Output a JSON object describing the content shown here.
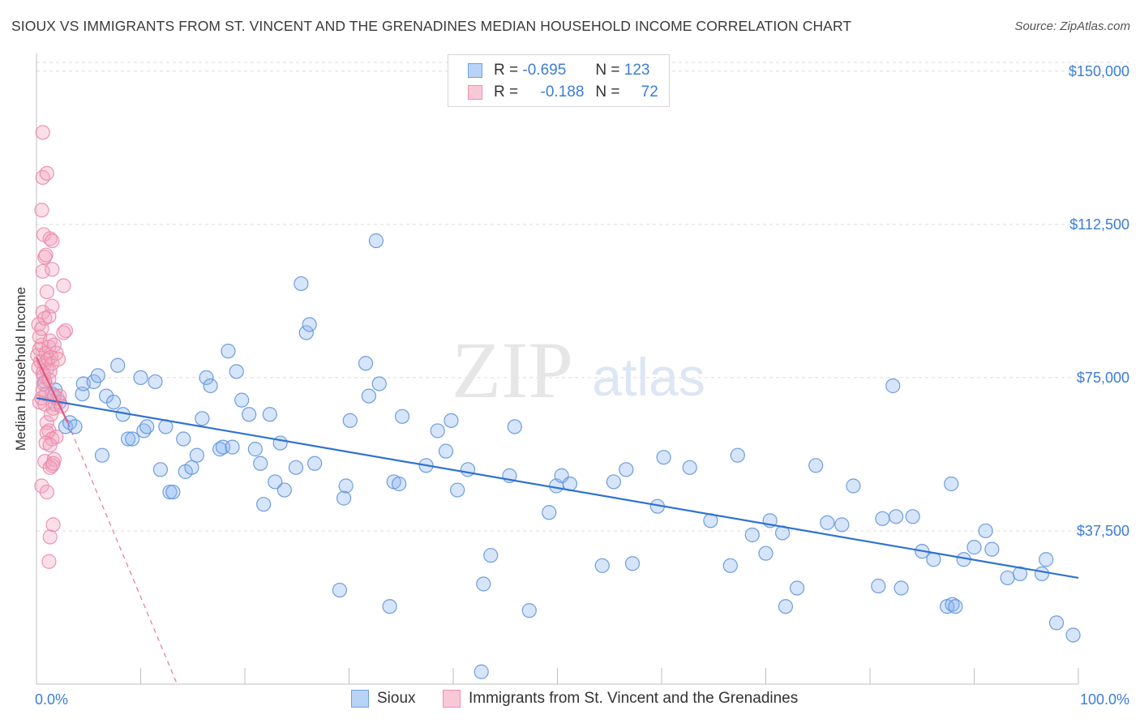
{
  "header": {
    "title": "SIOUX VS IMMIGRANTS FROM ST. VINCENT AND THE GRENADINES MEDIAN HOUSEHOLD INCOME CORRELATION CHART",
    "source": "Source: ZipAtlas.com"
  },
  "watermark": {
    "zip": "ZIP",
    "atlas": "atlas"
  },
  "legend": {
    "rows": [
      {
        "r_label": "R =",
        "r_value": "-0.695",
        "n_label": "N =",
        "n_value": "123",
        "color": "#8ab4f0"
      },
      {
        "r_label": "R =",
        "r_value": "-0.188",
        "n_label": "N =",
        "n_value": "72",
        "color": "#f3a3bd"
      }
    ]
  },
  "bottom_legend": {
    "series1": "Sioux",
    "series2": "Immigrants from St. Vincent and the Grenadines"
  },
  "chart_data": {
    "type": "scatter",
    "title": "SIOUX VS IMMIGRANTS FROM ST. VINCENT AND THE GRENADINES MEDIAN HOUSEHOLD INCOME CORRELATION CHART",
    "xlabel": "",
    "ylabel": "Median Household Income",
    "xlim": [
      0,
      100
    ],
    "ylim": [
      0,
      157500
    ],
    "x_tick_labels": [
      "0.0%",
      "100.0%"
    ],
    "y_ticks": [
      37500,
      75000,
      112500,
      150000
    ],
    "y_tick_labels": [
      "$37,500",
      "$75,000",
      "$112,500",
      "$150,000"
    ],
    "grid": "horizontal dashed",
    "legend_position": "top-center",
    "series": [
      {
        "name": "Sioux",
        "color": "#8ab4f0",
        "line_color": "#2f72d0",
        "r": -0.695,
        "n": 123,
        "trend": {
          "x": [
            0,
            100
          ],
          "y": [
            70000,
            26000
          ],
          "style": "solid"
        },
        "points": [
          [
            0.8,
            74000
          ],
          [
            1.5,
            71000
          ],
          [
            1.8,
            72000
          ],
          [
            2.2,
            69000
          ],
          [
            2.8,
            63000
          ],
          [
            3.2,
            64000
          ],
          [
            3.7,
            63000
          ],
          [
            4.4,
            71000
          ],
          [
            4.5,
            73500
          ],
          [
            5.5,
            74000
          ],
          [
            5.9,
            75500
          ],
          [
            6.3,
            56000
          ],
          [
            6.7,
            70500
          ],
          [
            7.4,
            69000
          ],
          [
            7.8,
            78000
          ],
          [
            8.3,
            66000
          ],
          [
            8.8,
            60000
          ],
          [
            9.2,
            60000
          ],
          [
            10.0,
            75000
          ],
          [
            10.3,
            62000
          ],
          [
            10.6,
            63000
          ],
          [
            11.4,
            74000
          ],
          [
            11.9,
            52500
          ],
          [
            12.4,
            63000
          ],
          [
            12.8,
            47000
          ],
          [
            13.1,
            47000
          ],
          [
            14.1,
            60000
          ],
          [
            14.3,
            52000
          ],
          [
            14.9,
            53000
          ],
          [
            15.4,
            56000
          ],
          [
            15.9,
            65000
          ],
          [
            16.3,
            75000
          ],
          [
            16.7,
            73000
          ],
          [
            17.6,
            57500
          ],
          [
            17.9,
            58000
          ],
          [
            18.4,
            81500
          ],
          [
            18.8,
            58000
          ],
          [
            19.2,
            76500
          ],
          [
            19.7,
            69500
          ],
          [
            20.4,
            66000
          ],
          [
            21.0,
            57500
          ],
          [
            21.5,
            54000
          ],
          [
            21.8,
            44000
          ],
          [
            22.4,
            66000
          ],
          [
            22.9,
            49500
          ],
          [
            23.4,
            59000
          ],
          [
            23.8,
            47500
          ],
          [
            24.9,
            53000
          ],
          [
            25.4,
            98000
          ],
          [
            25.9,
            86000
          ],
          [
            26.2,
            88000
          ],
          [
            26.7,
            54000
          ],
          [
            29.1,
            23000
          ],
          [
            29.5,
            45500
          ],
          [
            29.7,
            48500
          ],
          [
            30.1,
            64500
          ],
          [
            31.6,
            78500
          ],
          [
            31.9,
            70500
          ],
          [
            32.6,
            108500
          ],
          [
            32.9,
            73500
          ],
          [
            33.9,
            19000
          ],
          [
            34.3,
            49500
          ],
          [
            34.8,
            49000
          ],
          [
            35.1,
            65500
          ],
          [
            37.4,
            53500
          ],
          [
            38.5,
            62000
          ],
          [
            39.3,
            57000
          ],
          [
            39.8,
            64500
          ],
          [
            40.4,
            47500
          ],
          [
            41.4,
            52500
          ],
          [
            42.7,
            3000
          ],
          [
            42.9,
            24500
          ],
          [
            43.6,
            31500
          ],
          [
            45.4,
            51000
          ],
          [
            45.9,
            63000
          ],
          [
            47.3,
            18000
          ],
          [
            49.2,
            42000
          ],
          [
            49.9,
            48500
          ],
          [
            50.4,
            51000
          ],
          [
            51.2,
            49000
          ],
          [
            54.3,
            29000
          ],
          [
            55.4,
            49500
          ],
          [
            56.6,
            52500
          ],
          [
            57.2,
            29500
          ],
          [
            59.6,
            43500
          ],
          [
            60.2,
            55500
          ],
          [
            62.7,
            53000
          ],
          [
            64.7,
            40000
          ],
          [
            66.6,
            29000
          ],
          [
            67.3,
            56000
          ],
          [
            68.7,
            36500
          ],
          [
            70.0,
            32000
          ],
          [
            70.4,
            40000
          ],
          [
            71.6,
            37000
          ],
          [
            71.9,
            19000
          ],
          [
            73.0,
            23500
          ],
          [
            74.8,
            53500
          ],
          [
            75.9,
            39500
          ],
          [
            77.3,
            39000
          ],
          [
            78.4,
            48500
          ],
          [
            80.8,
            24000
          ],
          [
            81.2,
            40500
          ],
          [
            82.2,
            73000
          ],
          [
            82.5,
            41000
          ],
          [
            83.0,
            23500
          ],
          [
            84.1,
            41000
          ],
          [
            85.0,
            32500
          ],
          [
            86.1,
            30500
          ],
          [
            87.4,
            19000
          ],
          [
            87.9,
            19500
          ],
          [
            88.2,
            19000
          ],
          [
            87.8,
            49000
          ],
          [
            89.0,
            30500
          ],
          [
            90.0,
            33500
          ],
          [
            91.1,
            37500
          ],
          [
            91.7,
            33000
          ],
          [
            93.2,
            26000
          ],
          [
            94.4,
            27000
          ],
          [
            96.5,
            27000
          ],
          [
            96.9,
            30500
          ],
          [
            97.9,
            15000
          ],
          [
            99.5,
            12000
          ]
        ]
      },
      {
        "name": "Immigrants from St. Vincent and the Grenadines",
        "color": "#f3a3bd",
        "line_color": "#e0577f",
        "r": -0.188,
        "n": 72,
        "trend": {
          "x": [
            0,
            3.0
          ],
          "y": [
            80000,
            64000
          ],
          "style": "solid",
          "extended_to": [
            13.5,
            0
          ],
          "extended_style": "dashed"
        },
        "points": [
          [
            0.1,
            80500
          ],
          [
            0.2,
            77500
          ],
          [
            0.3,
            82000
          ],
          [
            0.4,
            79000
          ],
          [
            0.5,
            83000
          ],
          [
            0.6,
            76000
          ],
          [
            0.7,
            75500
          ],
          [
            0.8,
            78500
          ],
          [
            0.9,
            81000
          ],
          [
            1.0,
            77000
          ],
          [
            1.1,
            79500
          ],
          [
            1.2,
            82500
          ],
          [
            1.3,
            76500
          ],
          [
            1.4,
            80000
          ],
          [
            1.5,
            78500
          ],
          [
            0.2,
            88000
          ],
          [
            0.3,
            85000
          ],
          [
            0.5,
            87000
          ],
          [
            0.6,
            91000
          ],
          [
            0.8,
            89500
          ],
          [
            1.0,
            96000
          ],
          [
            1.2,
            90000
          ],
          [
            1.3,
            84000
          ],
          [
            1.5,
            92500
          ],
          [
            0.3,
            69000
          ],
          [
            0.5,
            70000
          ],
          [
            0.6,
            72000
          ],
          [
            0.7,
            73500
          ],
          [
            0.8,
            68500
          ],
          [
            0.9,
            71000
          ],
          [
            1.0,
            64000
          ],
          [
            1.2,
            62000
          ],
          [
            1.4,
            66000
          ],
          [
            1.6,
            67500
          ],
          [
            1.8,
            68500
          ],
          [
            2.0,
            70000
          ],
          [
            2.2,
            70500
          ],
          [
            2.4,
            68000
          ],
          [
            0.6,
            135000
          ],
          [
            0.6,
            124000
          ],
          [
            1.0,
            125000
          ],
          [
            0.5,
            116000
          ],
          [
            0.7,
            110000
          ],
          [
            1.3,
            109000
          ],
          [
            1.5,
            108500
          ],
          [
            0.8,
            104500
          ],
          [
            0.6,
            101000
          ],
          [
            1.5,
            101500
          ],
          [
            2.6,
            97500
          ],
          [
            0.9,
            105000
          ],
          [
            2.8,
            86500
          ],
          [
            2.6,
            86000
          ],
          [
            1.0,
            61500
          ],
          [
            1.5,
            60000
          ],
          [
            1.9,
            60500
          ],
          [
            0.9,
            59000
          ],
          [
            1.3,
            58500
          ],
          [
            0.8,
            54500
          ],
          [
            1.7,
            55000
          ],
          [
            1.5,
            53500
          ],
          [
            1.3,
            53000
          ],
          [
            1.6,
            54000
          ],
          [
            0.5,
            48500
          ],
          [
            1.0,
            47000
          ],
          [
            1.6,
            39000
          ],
          [
            1.3,
            36000
          ],
          [
            1.2,
            30000
          ],
          [
            1.9,
            81000
          ],
          [
            2.1,
            79500
          ],
          [
            1.7,
            83000
          ],
          [
            1.2,
            74500
          ],
          [
            1.7,
            70500
          ]
        ]
      }
    ]
  }
}
